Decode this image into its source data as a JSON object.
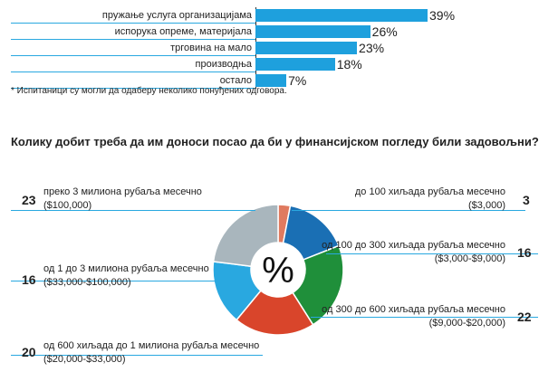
{
  "chart_data": [
    {
      "type": "bar",
      "categories": [
        "пружање услуга организацијама",
        "испорука опреме, материјала",
        "трговина на мало",
        "производња",
        "остало"
      ],
      "values": [
        39,
        26,
        23,
        18,
        7
      ],
      "value_labels": [
        "39%",
        "26%",
        "23%",
        "18%",
        "7%"
      ],
      "color": "#1ea0dd",
      "xlim": [
        0,
        40
      ]
    },
    {
      "type": "pie",
      "title": "Колику добит треба да им доноси посао да би у финансијском погледу били задовољни?",
      "center_label": "%",
      "slices": [
        {
          "label": "до 100 хиљада рубаља месечно",
          "sub": "($3,000)",
          "value": 3,
          "color": "#e07a5f"
        },
        {
          "label": "од 100 до 300 хиљада рубаља месечно",
          "sub": "($3,000-$9,000)",
          "value": 16,
          "color": "#1a6fb4"
        },
        {
          "label": "од 300 до 600 хиљада рубаља месечно",
          "sub": "($9,000-$20,000)",
          "value": 22,
          "color": "#1f8f3a"
        },
        {
          "label": "од 600 хиљада до 1 милиона рубаља месечно",
          "sub": "($20,000-$33,000)",
          "value": 20,
          "color": "#d9452b"
        },
        {
          "label": "од 1 до 3 милиона рубаља месечно",
          "sub": "($33,000-$100,000)",
          "value": 16,
          "color": "#29a8e0"
        },
        {
          "label": "преко 3 милиона рубаља месечно",
          "sub": "($100,000)",
          "value": 23,
          "color": "#a9b6bd"
        }
      ]
    }
  ],
  "footnote": "* Испитаници су могли да одаберу неколико понуђених одговора."
}
